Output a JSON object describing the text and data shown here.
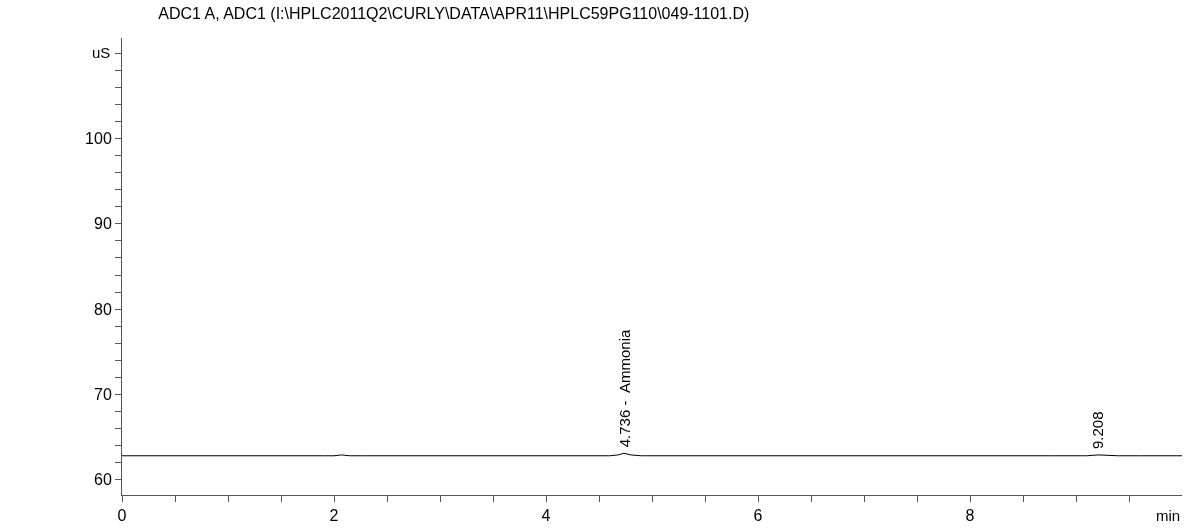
{
  "chart_data": {
    "type": "line",
    "title": "ADC1 A, ADC1 (I:\\HPLC2011Q2\\CURLY\\DATA\\APR11\\HPLC59PG110\\049-1101.D)",
    "xlabel": "min",
    "ylabel": "uS",
    "x": [
      0,
      0.5,
      1.0,
      1.5,
      1.9,
      2.0,
      2.07,
      2.15,
      2.3,
      3.0,
      3.5,
      4.0,
      4.5,
      4.6,
      4.68,
      4.736,
      4.8,
      4.9,
      5.0,
      5.5,
      6.0,
      7.0,
      8.0,
      8.8,
      9.1,
      9.208,
      9.4,
      9.6,
      10.0
    ],
    "series": [
      {
        "color": "#000000",
        "values": [
          62.8,
          62.8,
          62.8,
          62.8,
          62.8,
          62.8,
          62.9,
          62.8,
          62.8,
          62.8,
          62.8,
          62.8,
          62.8,
          62.8,
          62.9,
          63.1,
          62.9,
          62.8,
          62.8,
          62.8,
          62.8,
          62.8,
          62.8,
          62.8,
          62.8,
          62.9,
          62.8,
          62.8,
          62.8
        ]
      }
    ],
    "annotations": [
      {
        "text": "4.736 -  Ammonia",
        "x": 4.736,
        "y": 63.1
      },
      {
        "text": "9.208",
        "x": 9.208,
        "y": 62.9
      }
    ],
    "xlim": [
      0,
      10
    ],
    "ylim": [
      58.2,
      111.8
    ],
    "xticks": [
      0,
      {
        "value": 0.5,
        "label": null
      },
      {
        "value": 1,
        "label": null
      },
      {
        "value": 1.5,
        "label": null
      },
      2,
      {
        "value": 2.5,
        "label": null
      },
      {
        "value": 3,
        "label": null
      },
      {
        "value": 3.5,
        "label": null
      },
      4,
      {
        "value": 4.5,
        "label": null
      },
      {
        "value": 5,
        "label": null
      },
      {
        "value": 5.5,
        "label": null
      },
      6,
      {
        "value": 6.5,
        "label": null
      },
      {
        "value": 7,
        "label": null
      },
      {
        "value": 7.5,
        "label": null
      },
      8,
      {
        "value": 8.5,
        "label": null
      },
      {
        "value": 9,
        "label": null
      },
      {
        "value": 9.5,
        "label": null
      }
    ],
    "yticks": [
      60,
      {
        "value": 62,
        "label": null
      },
      {
        "value": 64,
        "label": null
      },
      {
        "value": 66,
        "label": null
      },
      {
        "value": 68,
        "label": null
      },
      70,
      {
        "value": 72,
        "label": null
      },
      {
        "value": 74,
        "label": null
      },
      {
        "value": 76,
        "label": null
      },
      {
        "value": 78,
        "label": null
      },
      80,
      {
        "value": 82,
        "label": null
      },
      {
        "value": 84,
        "label": null
      },
      {
        "value": 86,
        "label": null
      },
      {
        "value": 88,
        "label": null
      },
      90,
      {
        "value": 92,
        "label": null
      },
      {
        "value": 94,
        "label": null
      },
      {
        "value": 96,
        "label": null
      },
      {
        "value": 98,
        "label": null
      },
      100,
      {
        "value": 102,
        "label": null
      },
      {
        "value": 104,
        "label": null
      },
      {
        "value": 106,
        "label": null
      },
      {
        "value": 108,
        "label": null
      },
      {
        "value": 110,
        "label": null
      }
    ],
    "marker": "none",
    "line_style": "solid"
  }
}
